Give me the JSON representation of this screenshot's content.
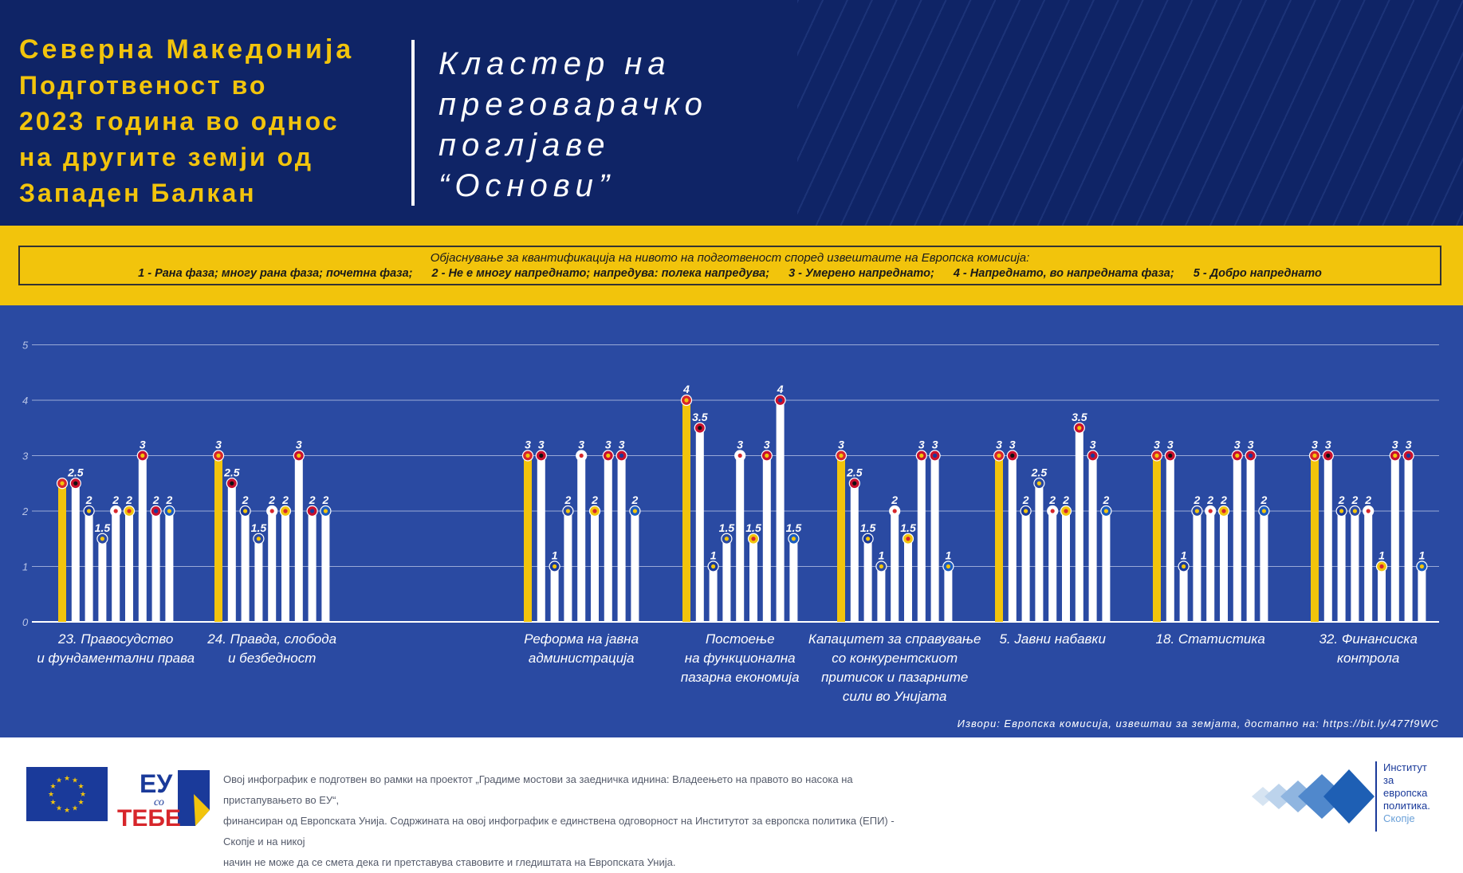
{
  "header": {
    "title_lines": [
      "Северна Македонија",
      "Подготвеност во",
      "2023 година во однос",
      "на другите земји од",
      "Западен Балкан"
    ],
    "cluster_lines": [
      "Кластер на",
      "преговарачко",
      "поглјаве",
      "“Основи”"
    ]
  },
  "legend": {
    "title": "Објаснување за квантификација  на нивото на подготвеност според извештаите на Европска комисија:",
    "items": [
      "1 - Рана фаза; многу рана фаза; почетна фаза;",
      "2 - Не е многу напреднато; напредува: полека напредува;",
      "3 - Умерено напреднато;",
      "4 - Напреднато, во напредната фаза;",
      "5 - Добро напреднато"
    ]
  },
  "source": "Извори: Европска комисија, извештаи за земјата, достапно на: https://bit.ly/477f9WC",
  "footer": {
    "text_lines": [
      "Овој инфографик е подготвен во рамки на проектот „Градиме мостови за заедничка иднина: Владеењето на правото во насока на пристапувањето во ЕУ“,",
      "финансиран од Европската Унија. Содржината на овој инфографик е единствена одговорност на Институтот за европска политика (ЕПИ) - Скопје и на никој",
      "начин не може да се смета дека ги претставува ставовите и гледиштата на Европската Унија."
    ],
    "euct_logo": {
      "top": "ЕУ",
      "middle": "со",
      "bottom": "ТЕБЕ"
    },
    "institute": {
      "lines": [
        "Институт",
        "за",
        "европска",
        "политика."
      ],
      "city": "Скопје"
    }
  },
  "colors": {
    "header_bg": "#0f2466",
    "accent_yellow": "#f2c40c",
    "chart_bg": "#2a4aa2",
    "bar_white": "#ffffff",
    "bar_highlight": "#f2c40c"
  },
  "chart_data": {
    "type": "bar",
    "ylim": [
      0,
      5
    ],
    "yticks": [
      0,
      1,
      2,
      3,
      4,
      5
    ],
    "grid": true,
    "highlight_color": "#f2c40c",
    "groups": [
      {
        "label_lines": [
          "23. Правосудство",
          "и фундаментални права"
        ],
        "values": [
          2.5,
          2.5,
          2,
          1.5,
          2,
          2,
          3,
          2,
          2
        ],
        "labels": [
          "",
          "2.5",
          "2",
          "1.5",
          "2",
          "2",
          "3",
          "2",
          "2"
        ],
        "flags": [
          "mk",
          "al",
          "ba",
          "xk",
          "ge",
          "md",
          "me",
          "rs",
          "ua"
        ]
      },
      {
        "label_lines": [
          "24. Правда, слобода",
          "и безбедност"
        ],
        "values": [
          3,
          2.5,
          2,
          1.5,
          2,
          2,
          3,
          2,
          2
        ],
        "labels": [
          "3",
          "2.5",
          "2",
          "1.5",
          "2",
          "2",
          "3",
          "2",
          "2"
        ],
        "flags": [
          "mk",
          "al",
          "ba",
          "xk",
          "ge",
          "md",
          "me",
          "rs",
          "ua"
        ]
      },
      {
        "label_lines": [
          "Реформа на јавна",
          "администрација"
        ],
        "values": [
          3,
          3,
          1,
          2,
          3,
          2,
          3,
          3,
          2
        ],
        "labels": [
          "3",
          "3",
          "1",
          "2",
          "3",
          "2",
          "3",
          "3",
          "2"
        ],
        "flags": [
          "mk",
          "al",
          "ba",
          "xk",
          "ge",
          "md",
          "me",
          "rs",
          "ua"
        ]
      },
      {
        "label_lines": [
          "Постоење",
          "на функционална",
          "пазарна економија"
        ],
        "values": [
          4,
          3.5,
          1,
          1.5,
          3,
          1.5,
          3,
          4,
          1.5
        ],
        "labels": [
          "4",
          "3.5",
          "1",
          "1.5",
          "3",
          "1.5",
          "3",
          "4",
          "1.5"
        ],
        "flags": [
          "mk",
          "al",
          "ba",
          "xk",
          "ge",
          "md",
          "me",
          "rs",
          "ua"
        ]
      },
      {
        "label_lines": [
          "Капацитет за справување",
          "со конкурентскиот",
          "притисок и пазарните",
          "сили во Унијата"
        ],
        "values": [
          3,
          2.5,
          1.5,
          1,
          2,
          1.5,
          3,
          3,
          1
        ],
        "labels": [
          "3",
          "2.5",
          "1.5",
          "1",
          "2",
          "1.5",
          "3",
          "3",
          "1"
        ],
        "flags": [
          "mk",
          "al",
          "ba",
          "xk",
          "ge",
          "md",
          "me",
          "rs",
          "ua"
        ]
      },
      {
        "label_lines": [
          "5. Јавни набавки"
        ],
        "values": [
          3,
          3,
          2,
          2.5,
          2,
          2,
          3.5,
          3,
          2
        ],
        "labels": [
          "3",
          "3",
          "2",
          "2.5",
          "2",
          "2",
          "3.5",
          "3",
          "2"
        ],
        "flags": [
          "mk",
          "al",
          "ba",
          "xk",
          "ge",
          "md",
          "me",
          "rs",
          "ua"
        ]
      },
      {
        "label_lines": [
          "18. Статистика"
        ],
        "values": [
          3,
          3,
          1,
          2,
          2,
          2,
          3,
          3,
          2
        ],
        "labels": [
          "3",
          "3",
          "1",
          "2",
          "2",
          "2",
          "3",
          "3",
          "2"
        ],
        "flags": [
          "mk",
          "al",
          "ba",
          "xk",
          "ge",
          "md",
          "me",
          "rs",
          "ua"
        ]
      },
      {
        "label_lines": [
          "32. Финансиска",
          "контрола"
        ],
        "values": [
          3,
          3,
          2,
          2,
          2,
          1,
          3,
          3,
          1
        ],
        "labels": [
          "3",
          "3",
          "2",
          "2",
          "2",
          "1",
          "3",
          "3",
          "1"
        ],
        "flags": [
          "mk",
          "al",
          "ba",
          "xk",
          "ge",
          "md",
          "me",
          "rs",
          "ua"
        ]
      }
    ]
  }
}
